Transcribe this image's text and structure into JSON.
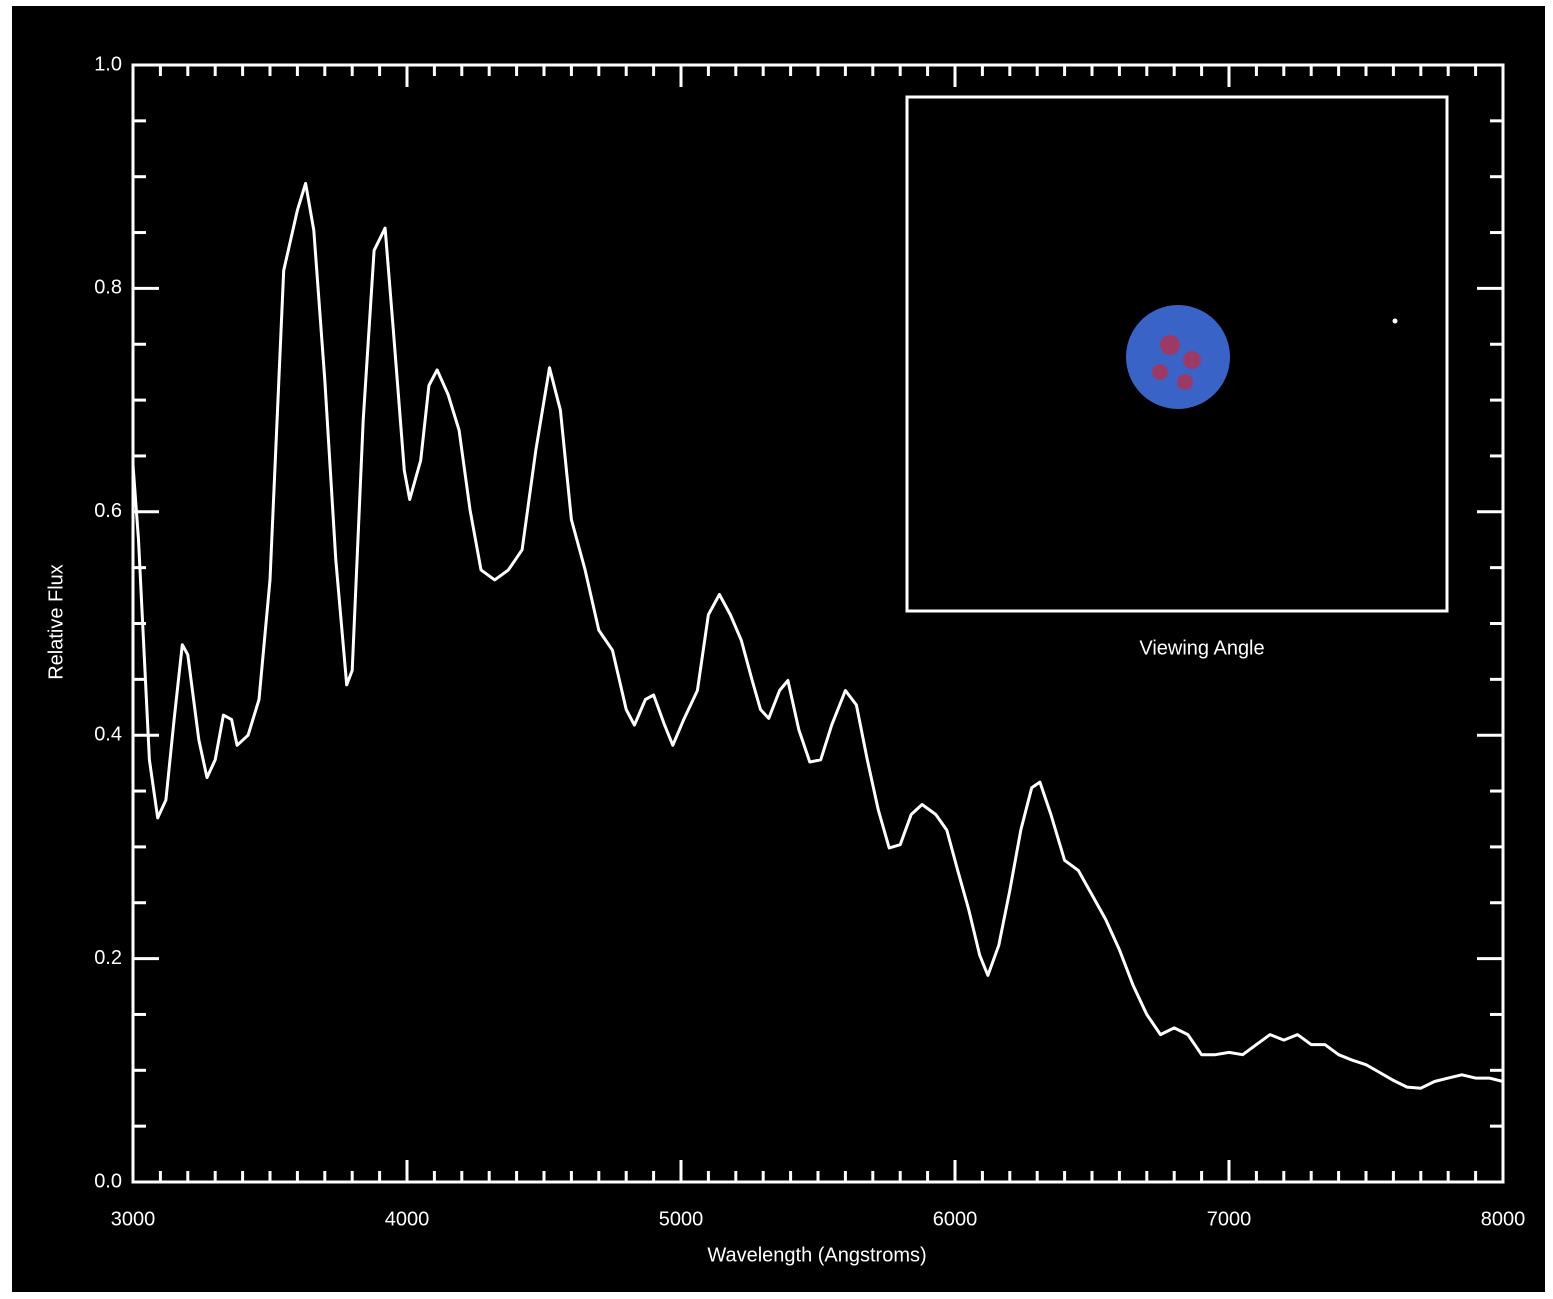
{
  "chart_data": {
    "type": "line",
    "xlabel": "Wavelength (Angstroms)",
    "ylabel": "Relative Flux",
    "inset_label": "Viewing Angle",
    "xlim": [
      3000,
      8000
    ],
    "ylim": [
      0,
      1
    ],
    "xticks": [
      3000,
      4000,
      5000,
      6000,
      7000,
      8000
    ],
    "yticks": [
      {
        "value": 0,
        "label": "0.0"
      },
      0.2,
      0.4,
      0.6,
      0.8,
      {
        "value": 1,
        "label": "1.0"
      }
    ],
    "xminorticks": [
      3100,
      3200,
      3300,
      3400,
      3500,
      3600,
      3700,
      3800,
      3900,
      4100,
      4200,
      4300,
      4400,
      4500,
      4600,
      4700,
      4800,
      4900,
      5100,
      5200,
      5300,
      5400,
      5500,
      5600,
      5700,
      5800,
      5900,
      6100,
      6200,
      6300,
      6400,
      6500,
      6600,
      6700,
      6800,
      6900,
      7100,
      7200,
      7300,
      7400,
      7500,
      7600,
      7700,
      7800,
      7900
    ],
    "yminorticks": [
      0.05,
      0.1,
      0.15,
      0.25,
      0.3,
      0.35,
      0.45,
      0.5,
      0.55,
      0.65,
      0.7,
      0.75,
      0.85,
      0.9,
      0.95
    ],
    "series": [
      {
        "color": "#ffffff",
        "x": [
          3000,
          3020,
          3060,
          3090,
          3120,
          3150,
          3180,
          3200,
          3240,
          3270,
          3300,
          3330,
          3360,
          3380,
          3420,
          3460,
          3500,
          3550,
          3600,
          3630,
          3660,
          3700,
          3740,
          3780,
          3800,
          3840,
          3880,
          3920,
          3950,
          3990,
          4010,
          4050,
          4080,
          4110,
          4150,
          4190,
          4230,
          4270,
          4320,
          4370,
          4420,
          4470,
          4520,
          4560,
          4600,
          4650,
          4700,
          4750,
          4800,
          4830,
          4870,
          4900,
          4940,
          4970,
          5010,
          5060,
          5100,
          5140,
          5180,
          5220,
          5260,
          5290,
          5320,
          5360,
          5390,
          5430,
          5470,
          5510,
          5550,
          5600,
          5640,
          5680,
          5720,
          5760,
          5800,
          5840,
          5880,
          5930,
          5970,
          6010,
          6050,
          6090,
          6120,
          6160,
          6200,
          6240,
          6280,
          6310,
          6350,
          6400,
          6450,
          6500,
          6550,
          6600,
          6650,
          6700,
          6750,
          6800,
          6850,
          6900,
          6950,
          7000,
          7050,
          7100,
          7150,
          7200,
          7250,
          7300,
          7350,
          7400,
          7450,
          7500,
          7550,
          7600,
          7650,
          7700,
          7750,
          7800,
          7850,
          7900,
          7950,
          8000
        ],
        "values": [
          0.642,
          0.575,
          0.378,
          0.326,
          0.342,
          0.414,
          0.481,
          0.472,
          0.396,
          0.362,
          0.378,
          0.418,
          0.414,
          0.391,
          0.4,
          0.432,
          0.539,
          0.816,
          0.87,
          0.894,
          0.852,
          0.718,
          0.557,
          0.445,
          0.458,
          0.682,
          0.834,
          0.854,
          0.763,
          0.637,
          0.611,
          0.646,
          0.713,
          0.727,
          0.705,
          0.673,
          0.602,
          0.548,
          0.539,
          0.548,
          0.566,
          0.655,
          0.729,
          0.691,
          0.593,
          0.548,
          0.494,
          0.476,
          0.423,
          0.409,
          0.432,
          0.436,
          0.409,
          0.391,
          0.414,
          0.44,
          0.508,
          0.526,
          0.508,
          0.485,
          0.449,
          0.423,
          0.415,
          0.44,
          0.449,
          0.405,
          0.376,
          0.378,
          0.409,
          0.44,
          0.427,
          0.378,
          0.333,
          0.299,
          0.302,
          0.329,
          0.338,
          0.329,
          0.315,
          0.279,
          0.244,
          0.203,
          0.185,
          0.212,
          0.261,
          0.315,
          0.353,
          0.358,
          0.329,
          0.288,
          0.279,
          0.257,
          0.235,
          0.208,
          0.176,
          0.15,
          0.132,
          0.138,
          0.132,
          0.114,
          0.114,
          0.116,
          0.114,
          0.123,
          0.132,
          0.127,
          0.132,
          0.123,
          0.123,
          0.114,
          0.109,
          0.105,
          0.098,
          0.091,
          0.085,
          0.084,
          0.09,
          0.093,
          0.096,
          0.093,
          0.093,
          0.09
        ]
      }
    ]
  }
}
